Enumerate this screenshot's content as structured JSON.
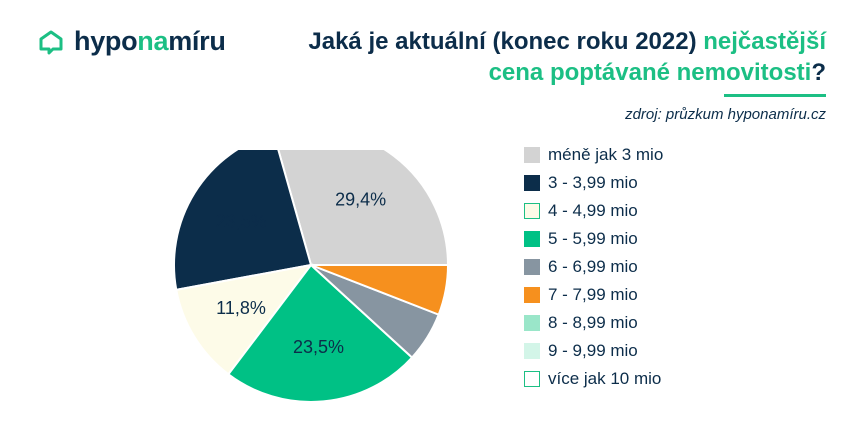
{
  "brand": {
    "part1": "hypo",
    "part2": "na",
    "part3": "míru"
  },
  "title": {
    "dark1": "Jaká je aktuální (konec roku 2022) ",
    "green1": "nejčastější",
    "green2": "cena poptávané nemovitosti",
    "dark2": "?"
  },
  "source": "zdroj: průzkum hyponamíru.cz",
  "colors": {
    "accent": "#1cbf84",
    "navy": "#0c2d4a"
  },
  "chart_data": {
    "type": "pie",
    "start_angle_deg": 0,
    "direction": "counterclockwise",
    "slices": [
      {
        "label": "méně jak 3 mio",
        "value": 29.4,
        "value_label": "29,4%",
        "color": "#d3d3d3",
        "border": "#d3d3d3"
      },
      {
        "label": "3 - 3,99 mio",
        "value": 23.5,
        "value_label": "23,5%",
        "color": "#0c2d4a",
        "border": "#0c2d4a"
      },
      {
        "label": "4 - 4,99 mio",
        "value": 11.8,
        "value_label": "11,8%",
        "color": "#fdfbe8",
        "border": "#1cbf84"
      },
      {
        "label": "5 - 5,99 mio",
        "value": 23.5,
        "value_label": "23,5%",
        "color": "#00c185",
        "border": "#00c185"
      },
      {
        "label": "6 - 6,99 mio",
        "value": 5.9,
        "value_label": "",
        "color": "#8795a1",
        "border": "#8795a1"
      },
      {
        "label": "7 - 7,99 mio",
        "value": 5.9,
        "value_label": "",
        "color": "#f6901e",
        "border": "#f6901e"
      },
      {
        "label": "8 - 8,99 mio",
        "value": 0,
        "value_label": "",
        "color": "#9ae6c9",
        "border": "#9ae6c9"
      },
      {
        "label": "9 - 9,99 mio",
        "value": 0,
        "value_label": "",
        "color": "#d3f5e8",
        "border": "#d3f5e8"
      },
      {
        "label": "více jak 10 mio",
        "value": 0,
        "value_label": "",
        "color": "#ffffff",
        "border": "#1cbf84"
      }
    ]
  }
}
